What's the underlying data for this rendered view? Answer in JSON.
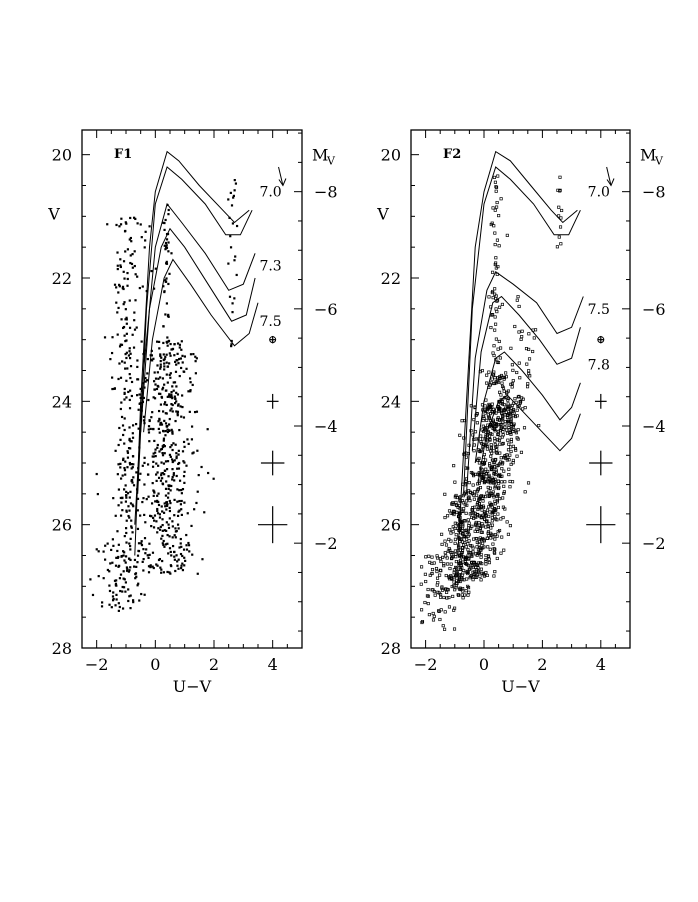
{
  "chart_data": [
    {
      "type": "scatter",
      "panel_label": "F1",
      "xlabel": "U−V",
      "ylabel": "V",
      "right_axis_label": "M",
      "right_axis_label_sub": "V",
      "xlim": [
        -2.5,
        5.0
      ],
      "ylim": [
        28,
        19.6
      ],
      "x_ticks": [
        "−2",
        "0",
        "2",
        "4"
      ],
      "x_tick_values": [
        -2,
        0,
        2,
        4
      ],
      "y_ticks": [
        "20",
        "22",
        "24",
        "26",
        "28"
      ],
      "y_tick_values": [
        20,
        22,
        24,
        26,
        28
      ],
      "right_ticks": [
        "−8",
        "−6",
        "−4",
        "−2"
      ],
      "right_tick_v_values": [
        20.6,
        22.5,
        24.4,
        26.3
      ],
      "isochrones": [
        {
          "label": "7.0",
          "label_v": 20.6,
          "points": [
            [
              -0.7,
              26.5
            ],
            [
              -0.5,
              24
            ],
            [
              -0.2,
              21.5
            ],
            [
              0.0,
              20.6
            ],
            [
              0.4,
              19.95
            ],
            [
              0.8,
              20.1
            ],
            [
              1.5,
              20.5
            ],
            [
              2.3,
              20.9
            ],
            [
              2.7,
              21.1
            ],
            [
              3.2,
              20.9
            ]
          ]
        },
        {
          "label": "7.0",
          "label_v": 20.6,
          "points": [
            [
              -0.6,
              25.5
            ],
            [
              -0.3,
              22.5
            ],
            [
              0.0,
              20.8
            ],
            [
              0.4,
              20.2
            ],
            [
              0.9,
              20.4
            ],
            [
              1.7,
              20.8
            ],
            [
              2.4,
              21.3
            ],
            [
              2.9,
              21.3
            ],
            [
              3.3,
              20.9
            ]
          ]
        },
        {
          "label": "7.3",
          "label_v": 21.8,
          "points": [
            [
              -0.7,
              26
            ],
            [
              -0.4,
              23.5
            ],
            [
              0.0,
              21.5
            ],
            [
              0.4,
              20.8
            ],
            [
              0.9,
              21.1
            ],
            [
              1.7,
              21.6
            ],
            [
              2.5,
              22.2
            ],
            [
              3.0,
              22.1
            ],
            [
              3.4,
              21.6
            ]
          ]
        },
        {
          "label": "7.3",
          "label_v": 21.8,
          "points": [
            [
              -0.5,
              24.5
            ],
            [
              -0.2,
              22.5
            ],
            [
              0.2,
              21.5
            ],
            [
              0.5,
              21.2
            ],
            [
              1.0,
              21.5
            ],
            [
              1.8,
              22.1
            ],
            [
              2.6,
              22.7
            ],
            [
              3.1,
              22.6
            ],
            [
              3.4,
              22.0
            ]
          ]
        },
        {
          "label": "7.5",
          "label_v": 22.7,
          "points": [
            [
              -0.4,
              24.5
            ],
            [
              -0.1,
              23.0
            ],
            [
              0.3,
              22.0
            ],
            [
              0.6,
              21.7
            ],
            [
              1.2,
              22.1
            ],
            [
              1.9,
              22.6
            ],
            [
              2.7,
              23.1
            ],
            [
              3.2,
              22.9
            ],
            [
              3.5,
              22.4
            ]
          ]
        }
      ],
      "error_bars": [
        {
          "x": 4.0,
          "v": 23.0,
          "xerr": 0.1,
          "verr": 0.06
        },
        {
          "x": 4.0,
          "v": 24.0,
          "xerr": 0.2,
          "verr": 0.12
        },
        {
          "x": 4.0,
          "v": 25.0,
          "xerr": 0.4,
          "verr": 0.2
        },
        {
          "x": 4.0,
          "v": 26.0,
          "xerr": 0.5,
          "verr": 0.3
        }
      ],
      "reddening_arrow": {
        "x": 4.2,
        "v": 20.2,
        "dx": 0.15,
        "dv": 0.3
      },
      "scatter_regions": [
        {
          "n": 260,
          "x_mean": -0.95,
          "x_sd": 0.25,
          "v_min": 21.0,
          "v_max": 27.3,
          "slope": 0.0
        },
        {
          "n": 520,
          "x_mean": 0.4,
          "x_sd": 0.5,
          "v_min": 23.0,
          "v_max": 26.8,
          "slope": 0.0
        },
        {
          "n": 60,
          "x_mean": -1.3,
          "x_sd": 0.4,
          "v_min": 26.2,
          "v_max": 27.4,
          "slope": 0.0
        },
        {
          "n": 40,
          "x_mean": 0.4,
          "x_sd": 0.05,
          "v_min": 20.8,
          "v_max": 23.0,
          "slope": 0.0
        },
        {
          "n": 25,
          "x_mean": 2.6,
          "x_sd": 0.06,
          "v_min": 20.3,
          "v_max": 23.3,
          "slope": 0.0
        },
        {
          "n": 12,
          "x_mean": -0.4,
          "x_sd": 0.2,
          "v_min": 20.8,
          "v_max": 22.5,
          "slope": 0.0
        }
      ]
    },
    {
      "type": "scatter",
      "panel_label": "F2",
      "xlabel": "U−V",
      "ylabel": "V",
      "right_axis_label": "M",
      "right_axis_label_sub": "V",
      "xlim": [
        -2.5,
        5.0
      ],
      "ylim": [
        28,
        19.6
      ],
      "x_ticks": [
        "−2",
        "0",
        "2",
        "4"
      ],
      "x_tick_values": [
        -2,
        0,
        2,
        4
      ],
      "y_ticks": [
        "20",
        "22",
        "24",
        "26",
        "28"
      ],
      "y_tick_values": [
        20,
        22,
        24,
        26,
        28
      ],
      "right_ticks": [
        "−8",
        "−6",
        "−4",
        "−2"
      ],
      "right_tick_v_values": [
        20.6,
        22.5,
        24.4,
        26.3
      ],
      "isochrones": [
        {
          "label": "7.0",
          "label_v": 20.6,
          "points": [
            [
              -0.9,
              26.5
            ],
            [
              -0.6,
              24
            ],
            [
              -0.3,
              21.5
            ],
            [
              0.0,
              20.6
            ],
            [
              0.4,
              19.95
            ],
            [
              0.9,
              20.1
            ],
            [
              1.6,
              20.5
            ],
            [
              2.3,
              20.9
            ],
            [
              2.7,
              21.1
            ],
            [
              3.2,
              20.9
            ]
          ]
        },
        {
          "label": "7.0",
          "label_v": 20.6,
          "points": [
            [
              -0.7,
              25.5
            ],
            [
              -0.4,
              22.5
            ],
            [
              0.0,
              20.8
            ],
            [
              0.4,
              20.2
            ],
            [
              0.9,
              20.4
            ],
            [
              1.7,
              20.8
            ],
            [
              2.4,
              21.3
            ],
            [
              2.9,
              21.3
            ],
            [
              3.3,
              20.9
            ]
          ]
        },
        {
          "label": "7.5",
          "label_v": 22.5,
          "points": [
            [
              -0.6,
              25.5
            ],
            [
              -0.3,
              23.3
            ],
            [
              0.1,
              22.2
            ],
            [
              0.4,
              21.9
            ],
            [
              1.0,
              22.1
            ],
            [
              1.8,
              22.4
            ],
            [
              2.5,
              22.9
            ],
            [
              3.0,
              22.8
            ],
            [
              3.4,
              22.3
            ]
          ]
        },
        {
          "label": "7.5",
          "label_v": 22.5,
          "points": [
            [
              -0.4,
              24.8
            ],
            [
              -0.1,
              23.2
            ],
            [
              0.3,
              22.4
            ],
            [
              0.6,
              22.3
            ],
            [
              1.2,
              22.6
            ],
            [
              1.9,
              23.0
            ],
            [
              2.5,
              23.4
            ],
            [
              3.0,
              23.3
            ],
            [
              3.3,
              22.8
            ]
          ]
        },
        {
          "label": "7.8",
          "label_v": 23.4,
          "points": [
            [
              -0.3,
              25.0
            ],
            [
              0.0,
              24.0
            ],
            [
              0.4,
              23.3
            ],
            [
              0.7,
              23.2
            ],
            [
              1.3,
              23.5
            ],
            [
              2.0,
              23.9
            ],
            [
              2.6,
              24.3
            ],
            [
              3.0,
              24.1
            ],
            [
              3.3,
              23.7
            ]
          ]
        },
        {
          "label": "7.8",
          "label_v": 23.4,
          "points": [
            [
              -0.2,
              25.3
            ],
            [
              0.1,
              24.5
            ],
            [
              0.5,
              24.0
            ],
            [
              0.8,
              23.9
            ],
            [
              1.4,
              24.2
            ],
            [
              2.0,
              24.5
            ],
            [
              2.6,
              24.8
            ],
            [
              3.0,
              24.6
            ],
            [
              3.3,
              24.2
            ]
          ]
        }
      ],
      "error_bars": [
        {
          "x": 4.0,
          "v": 23.0,
          "xerr": 0.1,
          "verr": 0.06
        },
        {
          "x": 4.0,
          "v": 24.0,
          "xerr": 0.2,
          "verr": 0.12
        },
        {
          "x": 4.0,
          "v": 25.0,
          "xerr": 0.4,
          "verr": 0.2
        },
        {
          "x": 4.0,
          "v": 26.0,
          "xerr": 0.5,
          "verr": 0.3
        }
      ],
      "reddening_arrow": {
        "x": 4.2,
        "v": 20.2,
        "dx": 0.15,
        "dv": 0.3
      },
      "scatter_regions": [
        {
          "n": 700,
          "x_mean": 0.1,
          "x_sd": 0.45,
          "v_min": 24.0,
          "v_max": 26.9,
          "slope": -0.35
        },
        {
          "n": 160,
          "x_mean": -0.9,
          "x_sd": 0.25,
          "v_min": 25.5,
          "v_max": 27.2,
          "slope": 0.0
        },
        {
          "n": 70,
          "x_mean": -1.5,
          "x_sd": 0.35,
          "v_min": 26.5,
          "v_max": 27.7,
          "slope": 0.0
        },
        {
          "n": 90,
          "x_mean": 0.6,
          "x_sd": 0.35,
          "v_min": 23.5,
          "v_max": 24.5,
          "slope": 0.0
        },
        {
          "n": 60,
          "x_mean": 0.4,
          "x_sd": 0.1,
          "v_min": 20.3,
          "v_max": 23.8,
          "slope": 0.0
        },
        {
          "n": 30,
          "x_mean": 1.3,
          "x_sd": 0.3,
          "v_min": 22.3,
          "v_max": 24.0,
          "slope": 0.0
        },
        {
          "n": 12,
          "x_mean": 2.6,
          "x_sd": 0.06,
          "v_min": 20.3,
          "v_max": 21.5,
          "slope": 0.0
        }
      ]
    }
  ]
}
